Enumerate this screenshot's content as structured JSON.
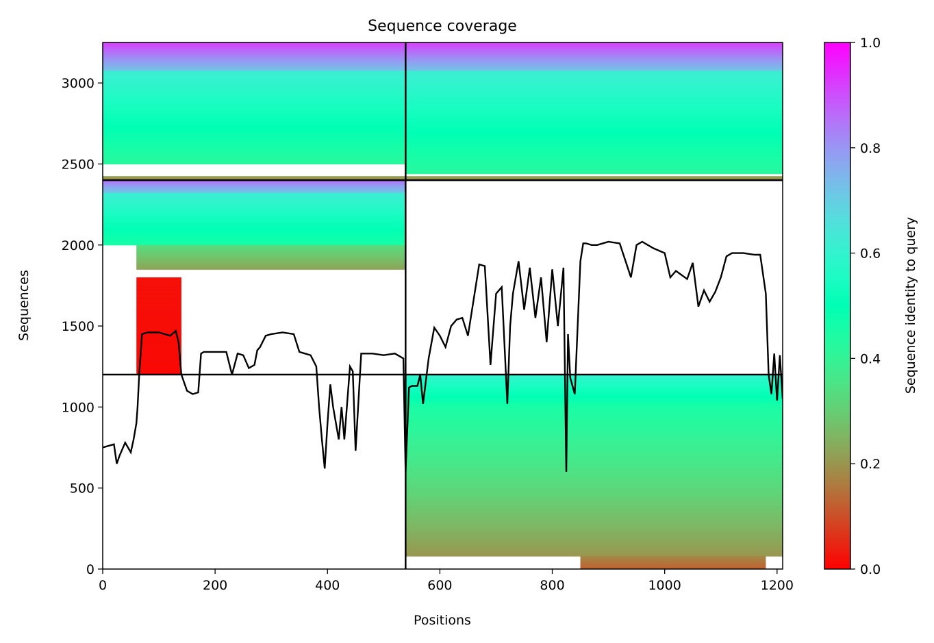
{
  "chart_data": {
    "type": "heatmap",
    "title": "Sequence coverage",
    "xlabel": "Positions",
    "ylabel": "Sequences",
    "xlim": [
      0,
      1210
    ],
    "ylim": [
      0,
      3250
    ],
    "x_ticks": [
      0,
      200,
      400,
      600,
      800,
      1000,
      1200
    ],
    "y_ticks": [
      0,
      500,
      1000,
      1500,
      2000,
      2500,
      3000
    ],
    "colorbar": {
      "label": "Sequence identity to query",
      "range": [
        0,
        1
      ],
      "ticks": [
        "0.0",
        "0.2",
        "0.4",
        "0.6",
        "0.8",
        "1.0"
      ],
      "colormap": "rainbow_r"
    },
    "divider_x": 539,
    "divider_y": [
      1200,
      2400
    ],
    "coverage_regions": [
      {
        "x0": 0,
        "x1": 539,
        "y0": 3075,
        "y1": 3250,
        "id_top": 0.92,
        "id_bottom": 0.72
      },
      {
        "x0": 0,
        "x1": 539,
        "y0": 2500,
        "y1": 3075,
        "id_top": 0.62,
        "id_bottom": 0.42
      },
      {
        "x0": 0,
        "x1": 539,
        "y0": 2400,
        "y1": 2425,
        "id_top": 0.22,
        "id_bottom": 0.18
      },
      {
        "x0": 539,
        "x1": 1210,
        "y0": 3075,
        "y1": 3250,
        "id_top": 0.92,
        "id_bottom": 0.72
      },
      {
        "x0": 539,
        "x1": 1210,
        "y0": 2440,
        "y1": 3075,
        "id_top": 0.62,
        "id_bottom": 0.42
      },
      {
        "x0": 539,
        "x1": 1210,
        "y0": 2400,
        "y1": 2425,
        "id_top": 0.22,
        "id_bottom": 0.18
      },
      {
        "x0": 0,
        "x1": 539,
        "y0": 2320,
        "y1": 2400,
        "id_top": 0.85,
        "id_bottom": 0.7
      },
      {
        "x0": 0,
        "x1": 539,
        "y0": 2000,
        "y1": 2320,
        "id_top": 0.62,
        "id_bottom": 0.45
      },
      {
        "x0": 60,
        "x1": 539,
        "y0": 1850,
        "y1": 2000,
        "id_top": 0.33,
        "id_bottom": 0.22
      },
      {
        "x0": 60,
        "x1": 140,
        "y0": 1200,
        "y1": 1800,
        "id_top": 0.02,
        "id_bottom": 0.01
      },
      {
        "x0": 539,
        "x1": 1210,
        "y0": 1000,
        "y1": 1200,
        "id_top": 0.6,
        "id_bottom": 0.45
      },
      {
        "x0": 539,
        "x1": 1210,
        "y0": 500,
        "y1": 1000,
        "id_top": 0.45,
        "id_bottom": 0.32
      },
      {
        "x0": 539,
        "x1": 1210,
        "y0": 80,
        "y1": 500,
        "id_top": 0.32,
        "id_bottom": 0.2
      },
      {
        "x0": 850,
        "x1": 1180,
        "y0": 0,
        "y1": 80,
        "id_top": 0.18,
        "id_bottom": 0.12
      }
    ],
    "coverage_line": {
      "x": [
        0,
        10,
        20,
        25,
        30,
        40,
        50,
        55,
        60,
        62,
        65,
        70,
        80,
        100,
        120,
        130,
        135,
        140,
        150,
        160,
        170,
        175,
        180,
        200,
        220,
        230,
        240,
        250,
        260,
        270,
        275,
        280,
        290,
        300,
        320,
        340,
        350,
        360,
        370,
        380,
        385,
        390,
        395,
        400,
        405,
        410,
        420,
        425,
        430,
        440,
        445,
        450,
        460,
        480,
        500,
        520,
        535,
        539,
        545,
        550,
        560,
        565,
        570,
        580,
        590,
        600,
        610,
        620,
        630,
        640,
        650,
        660,
        670,
        680,
        690,
        700,
        710,
        720,
        725,
        730,
        740,
        750,
        760,
        770,
        780,
        790,
        800,
        810,
        820,
        825,
        828,
        832,
        840,
        850,
        855,
        860,
        870,
        880,
        900,
        920,
        940,
        945,
        950,
        960,
        980,
        1000,
        1010,
        1020,
        1040,
        1050,
        1060,
        1070,
        1080,
        1090,
        1100,
        1110,
        1120,
        1140,
        1160,
        1170,
        1180,
        1185,
        1190,
        1195,
        1200,
        1205,
        1210
      ],
      "y": [
        750,
        760,
        770,
        650,
        700,
        780,
        720,
        800,
        900,
        1000,
        1200,
        1450,
        1460,
        1460,
        1440,
        1470,
        1400,
        1200,
        1100,
        1080,
        1090,
        1330,
        1340,
        1340,
        1340,
        1200,
        1330,
        1320,
        1240,
        1260,
        1350,
        1370,
        1440,
        1450,
        1460,
        1450,
        1340,
        1330,
        1320,
        1250,
        1000,
        800,
        620,
        900,
        1140,
        1000,
        800,
        1000,
        800,
        1250,
        1220,
        730,
        1330,
        1330,
        1320,
        1330,
        1300,
        600,
        1120,
        1130,
        1130,
        1200,
        1020,
        1300,
        1490,
        1440,
        1370,
        1500,
        1540,
        1550,
        1440,
        1660,
        1880,
        1870,
        1260,
        1700,
        1740,
        1020,
        1500,
        1700,
        1900,
        1600,
        1860,
        1550,
        1800,
        1400,
        1850,
        1500,
        1860,
        600,
        1450,
        1180,
        1080,
        1900,
        2010,
        2010,
        2000,
        2000,
        2020,
        2010,
        1800,
        1900,
        2000,
        2020,
        1980,
        1950,
        1800,
        1840,
        1790,
        1890,
        1620,
        1720,
        1650,
        1710,
        1800,
        1930,
        1950,
        1950,
        1940,
        1940,
        1700,
        1200,
        1080,
        1330,
        1040,
        1320,
        1050
      ]
    }
  }
}
